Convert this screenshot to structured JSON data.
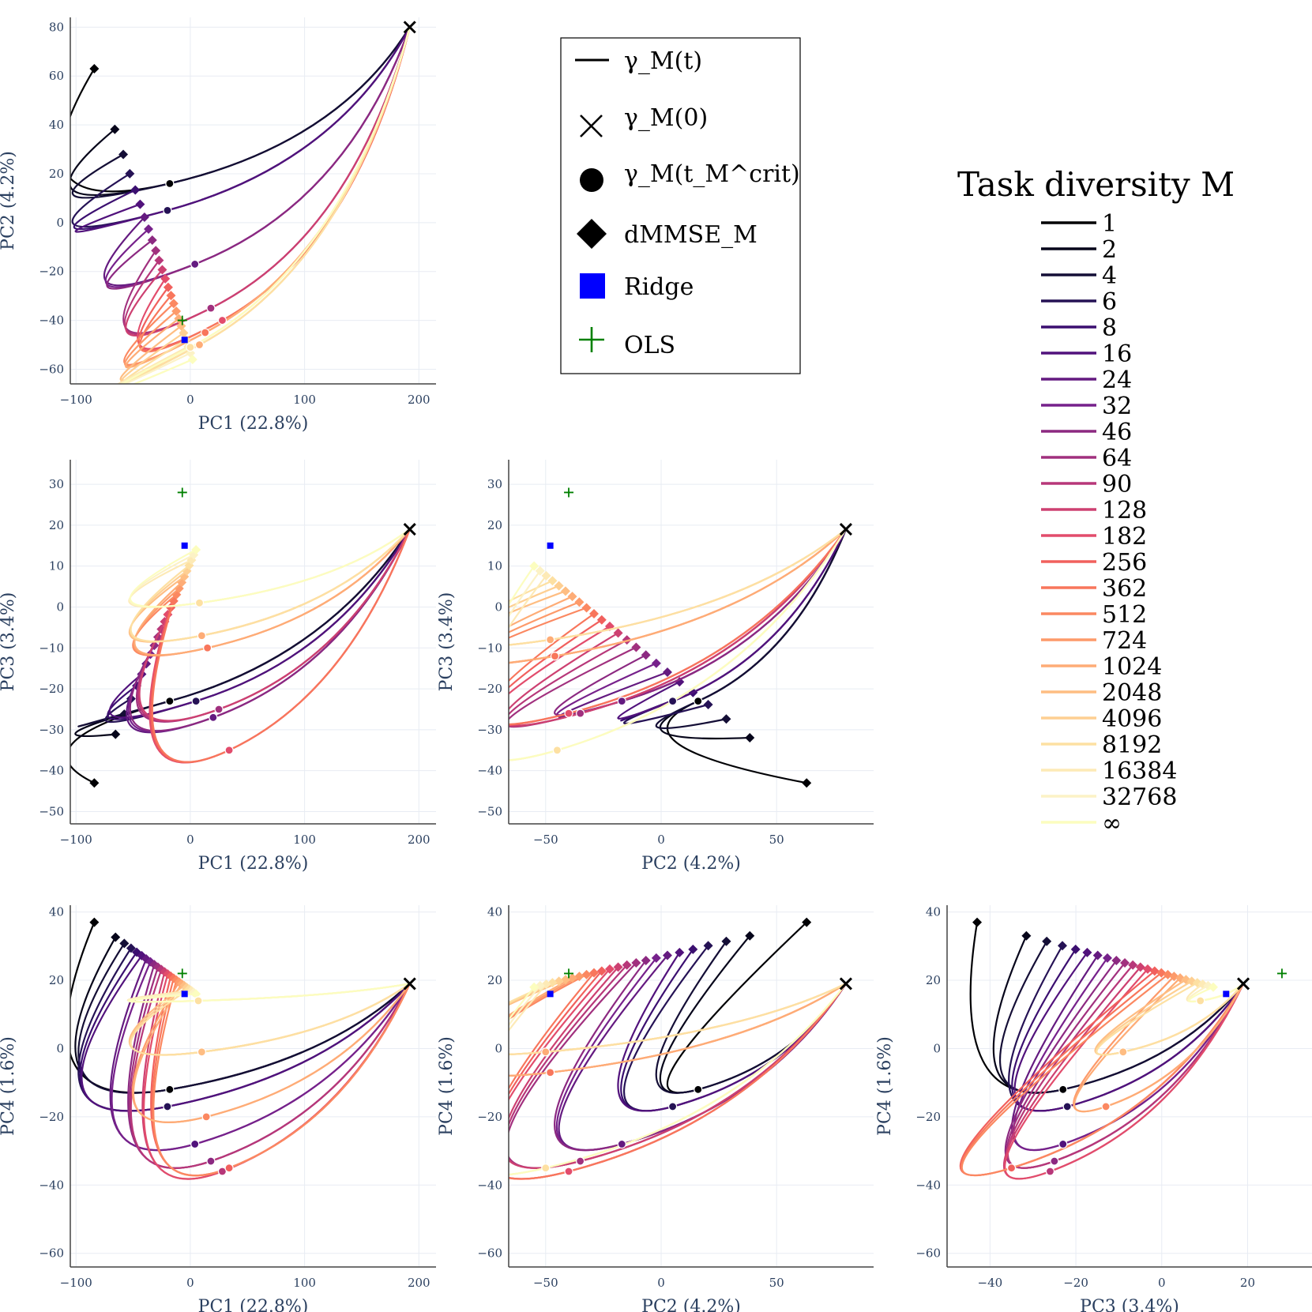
{
  "chart_data": [
    {
      "type": "line",
      "panel": "PC1-PC2",
      "xlabel": "PC1 (22.8%)",
      "ylabel": "PC2 (4.2%)",
      "xlim": [
        -105,
        215
      ],
      "ylim": [
        -66,
        84
      ],
      "xticks": [
        -100,
        0,
        100,
        200
      ],
      "xtick_labels": [
        "−100",
        "0",
        "100",
        "200"
      ],
      "yticks": [
        -60,
        -40,
        -20,
        0,
        20,
        40,
        60,
        80
      ],
      "ytick_labels": [
        "−60",
        "−40",
        "−20",
        "0",
        "20",
        "40",
        "60",
        "80"
      ],
      "start": [
        192,
        80
      ],
      "end_first": [
        -84,
        63
      ],
      "end_last": [
        2,
        -56
      ],
      "crit": [
        [
          -18,
          16
        ],
        [
          -20,
          5
        ],
        [
          4,
          -17
        ],
        [
          18,
          -35
        ],
        [
          28,
          -40
        ],
        [
          13,
          -45
        ],
        [
          8,
          -50
        ],
        [
          0,
          -51
        ]
      ],
      "ridge": [
        -5,
        -48
      ],
      "ols": [
        -7,
        -40
      ]
    },
    {
      "type": "line",
      "panel": "PC1-PC3",
      "xlabel": "PC1 (22.8%)",
      "ylabel": "PC3 (3.4%)",
      "xlim": [
        -105,
        215
      ],
      "ylim": [
        -53,
        36
      ],
      "xticks": [
        -100,
        0,
        100,
        200
      ],
      "xtick_labels": [
        "−100",
        "0",
        "100",
        "200"
      ],
      "yticks": [
        -50,
        -40,
        -30,
        -20,
        -10,
        0,
        10,
        20,
        30
      ],
      "ytick_labels": [
        "−50",
        "−40",
        "−30",
        "−20",
        "−10",
        "0",
        "10",
        "20",
        "30"
      ],
      "start": [
        192,
        19
      ],
      "end_first": [
        -84,
        -43
      ],
      "end_last": [
        5,
        14
      ],
      "crit": [
        [
          -18,
          -23
        ],
        [
          5,
          -23
        ],
        [
          20,
          -27
        ],
        [
          25,
          -25
        ],
        [
          34,
          -35
        ],
        [
          15,
          -10
        ],
        [
          10,
          -7
        ],
        [
          8,
          1
        ]
      ],
      "ridge": [
        -5,
        15
      ],
      "ols": [
        -7,
        28
      ]
    },
    {
      "type": "line",
      "panel": "PC2-PC3",
      "xlabel": "PC2 (4.2%)",
      "ylabel": "PC3 (3.4%)",
      "xlim": [
        -66,
        92
      ],
      "ylim": [
        -53,
        36
      ],
      "xticks": [
        -50,
        0,
        50
      ],
      "xtick_labels": [
        "−50",
        "0",
        "50"
      ],
      "yticks": [
        -50,
        -40,
        -30,
        -20,
        -10,
        0,
        10,
        20,
        30
      ],
      "ytick_labels": [
        "−50",
        "−40",
        "−30",
        "−20",
        "−10",
        "0",
        "10",
        "20",
        "30"
      ],
      "start": [
        80,
        19
      ],
      "end_first": [
        63,
        -43
      ],
      "end_last": [
        -55,
        10
      ],
      "crit": [
        [
          16,
          -23
        ],
        [
          5,
          -23
        ],
        [
          -17,
          -23
        ],
        [
          -35,
          -26
        ],
        [
          -40,
          -26
        ],
        [
          -46,
          -12
        ],
        [
          -48,
          -8
        ],
        [
          -45,
          -35
        ]
      ],
      "ridge": [
        -48,
        15
      ],
      "ols": [
        -40,
        28
      ]
    },
    {
      "type": "line",
      "panel": "PC1-PC4",
      "xlabel": "PC1 (22.8%)",
      "ylabel": "PC4 (1.6%)",
      "xlim": [
        -105,
        215
      ],
      "ylim": [
        -64,
        42
      ],
      "xticks": [
        -100,
        0,
        100,
        200
      ],
      "xtick_labels": [
        "−100",
        "0",
        "100",
        "200"
      ],
      "yticks": [
        -60,
        -40,
        -20,
        0,
        20,
        40
      ],
      "ytick_labels": [
        "−60",
        "−40",
        "−20",
        "0",
        "20",
        "40"
      ],
      "start": [
        192,
        19
      ],
      "end_first": [
        -84,
        37
      ],
      "end_last": [
        5,
        16
      ],
      "crit": [
        [
          -18,
          -12
        ],
        [
          -20,
          -17
        ],
        [
          4,
          -28
        ],
        [
          18,
          -33
        ],
        [
          28,
          -36
        ],
        [
          34,
          -35
        ],
        [
          14,
          -20
        ],
        [
          10,
          -1
        ],
        [
          7,
          14
        ]
      ],
      "ridge": [
        -5,
        16
      ],
      "ols": [
        -7,
        22
      ]
    },
    {
      "type": "line",
      "panel": "PC2-PC4",
      "xlabel": "PC2 (4.2%)",
      "ylabel": "PC4 (1.6%)",
      "xlim": [
        -66,
        92
      ],
      "ylim": [
        -64,
        42
      ],
      "xticks": [
        -50,
        0,
        50
      ],
      "xtick_labels": [
        "−50",
        "0",
        "50"
      ],
      "yticks": [
        -60,
        -40,
        -20,
        0,
        20,
        40
      ],
      "ytick_labels": [
        "−60",
        "−40",
        "−20",
        "0",
        "20",
        "40"
      ],
      "start": [
        80,
        19
      ],
      "end_first": [
        63,
        37
      ],
      "end_last": [
        -55,
        18
      ],
      "crit": [
        [
          16,
          -12
        ],
        [
          5,
          -17
        ],
        [
          -17,
          -28
        ],
        [
          -35,
          -33
        ],
        [
          -40,
          -36
        ],
        [
          -48,
          -7
        ],
        [
          -50,
          -1
        ],
        [
          -50,
          -35
        ]
      ],
      "ridge": [
        -48,
        16
      ],
      "ols": [
        -40,
        22
      ]
    },
    {
      "type": "line",
      "panel": "PC3-PC4",
      "xlabel": "PC3 (3.4%)",
      "ylabel": "PC4 (1.6%)",
      "xlim": [
        -50,
        35
      ],
      "ylim": [
        -64,
        42
      ],
      "xticks": [
        -40,
        -20,
        0,
        20
      ],
      "xtick_labels": [
        "−40",
        "−20",
        "0",
        "20"
      ],
      "yticks": [
        -60,
        -40,
        -20,
        0,
        20,
        40
      ],
      "ytick_labels": [
        "−60",
        "−40",
        "−20",
        "0",
        "20",
        "40"
      ],
      "start": [
        19,
        19
      ],
      "end_first": [
        -43,
        37
      ],
      "end_last": [
        12,
        18
      ],
      "crit": [
        [
          -23,
          -12
        ],
        [
          -22,
          -17
        ],
        [
          -23,
          -28
        ],
        [
          -25,
          -33
        ],
        [
          -26,
          -36
        ],
        [
          -35,
          -35
        ],
        [
          -13,
          -17
        ],
        [
          -9,
          -1
        ],
        [
          9,
          14
        ]
      ],
      "ridge": [
        15,
        16
      ],
      "ols": [
        28,
        22
      ]
    }
  ],
  "legend": {
    "items": [
      {
        "symbol": "line",
        "label": "γ_M(t)"
      },
      {
        "symbol": "x",
        "label": "γ_M(0)"
      },
      {
        "symbol": "circle",
        "label": "γ_M(t_M^crit)"
      },
      {
        "symbol": "diamond",
        "label": "dMMSE_M"
      },
      {
        "symbol": "square",
        "label": "Ridge"
      },
      {
        "symbol": "plus",
        "label": "OLS"
      }
    ],
    "ridge_color": "#0000ff",
    "ols_color": "#008000"
  },
  "colorbar": {
    "title": "Task diversity M",
    "labels": [
      "1",
      "2",
      "4",
      "6",
      "8",
      "16",
      "24",
      "32",
      "46",
      "64",
      "90",
      "128",
      "182",
      "256",
      "362",
      "512",
      "724",
      "1024",
      "2048",
      "4096",
      "8192",
      "16384",
      "32768",
      "∞"
    ],
    "colors": [
      "#000004",
      "#06051a",
      "#140e36",
      "#251255",
      "#3b0f70",
      "#51127c",
      "#641a80",
      "#76218b",
      "#8c2981",
      "#a1307e",
      "#b73779",
      "#cd4071",
      "#e24c6c",
      "#f1605d",
      "#f8765c",
      "#fb8861",
      "#fd9a6a",
      "#feac76",
      "#febd82",
      "#fecf92",
      "#fde0a2",
      "#fdeab6",
      "#fcf2c6",
      "#fcfdbf"
    ]
  }
}
